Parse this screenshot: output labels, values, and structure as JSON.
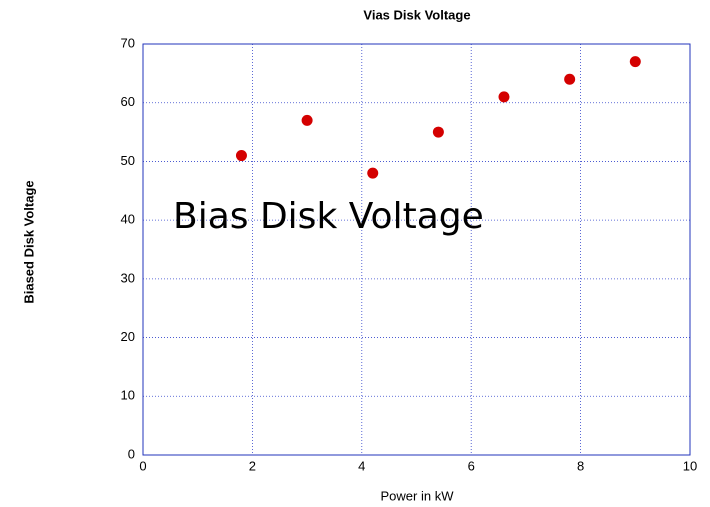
{
  "chart_data": {
    "type": "scatter",
    "title": "Vias Disk Voltage",
    "xlabel": "Power in kW",
    "ylabel": "Biased Disk Voltage",
    "annotation": "Bias Disk Voltage",
    "series": [
      {
        "color": "#d40000",
        "x": [
          1.8,
          3,
          4.2,
          5.4,
          6.6,
          7.8,
          9
        ],
        "values": [
          51,
          57,
          48,
          55,
          61,
          64,
          67
        ]
      }
    ],
    "xlim": [
      0,
      10
    ],
    "xticks": [
      0,
      2,
      4,
      6,
      8,
      10
    ],
    "ylim": [
      0,
      70
    ],
    "yticks": [
      0,
      10,
      20,
      30,
      40,
      50,
      60,
      70
    ],
    "grid": true
  }
}
